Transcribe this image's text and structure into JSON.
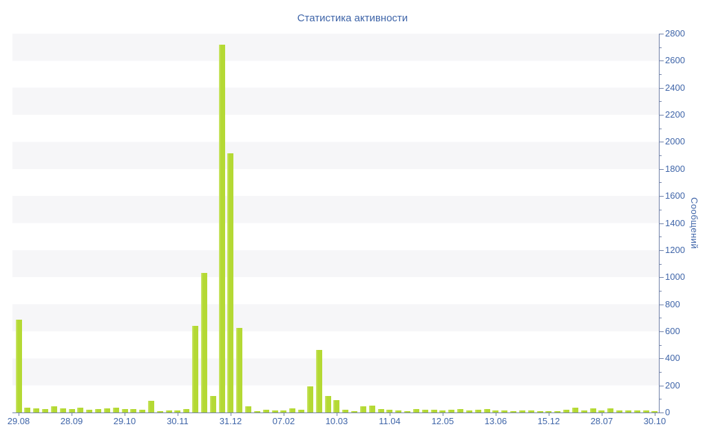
{
  "title": "Статистика активности",
  "colors": {
    "background": "#ffffff",
    "bar": "#b4d934",
    "bar_highlight": "#cfe775",
    "axis_line": "#7081a8",
    "text_blue": "#3e64a8",
    "band_gray": "#f6f6f8"
  },
  "y_axis": {
    "label": "Сообщений",
    "tick_labels": [
      "0",
      "200",
      "400",
      "600",
      "800",
      "1000",
      "1200",
      "1400",
      "1600",
      "1800",
      "2000",
      "2200",
      "2400",
      "2600",
      "2800"
    ]
  },
  "x_axis": {
    "tick_labels": [
      "29.08",
      "28.09",
      "29.10",
      "30.11",
      "31.12",
      "07.02",
      "10.03",
      "11.04",
      "12.05",
      "13.06",
      "15.12",
      "28.07",
      "30.10"
    ]
  },
  "chart_data": {
    "type": "bar",
    "title": "Статистика активности",
    "xlabel": "",
    "ylabel": "Сообщений",
    "ylim": [
      0,
      2800
    ],
    "y_tick_step": 200,
    "y_minor_tick_step": 100,
    "legend": "none",
    "grid": "alternating horizontal gray/white bands every 200 units",
    "x_label_every_n_bars": 6,
    "categories": [
      "29.08",
      "28.09",
      "29.10",
      "30.11",
      "31.12",
      "07.02",
      "10.03",
      "11.04",
      "12.05",
      "13.06",
      "15.12",
      "28.07",
      "30.10"
    ],
    "values": [
      685,
      35,
      33,
      27,
      46,
      30,
      27,
      37,
      20,
      25,
      30,
      35,
      25,
      25,
      20,
      88,
      10,
      15,
      15,
      25,
      640,
      1030,
      120,
      2720,
      1915,
      625,
      45,
      12,
      18,
      17,
      15,
      30,
      22,
      195,
      460,
      123,
      90,
      22,
      12,
      48,
      50,
      25,
      20,
      17,
      9,
      25,
      20,
      20,
      17,
      20,
      25,
      15,
      20,
      25,
      15,
      17,
      12,
      17,
      17,
      9,
      12,
      9,
      20,
      38,
      17,
      29,
      17,
      29,
      17,
      15,
      15,
      15,
      9
    ]
  }
}
